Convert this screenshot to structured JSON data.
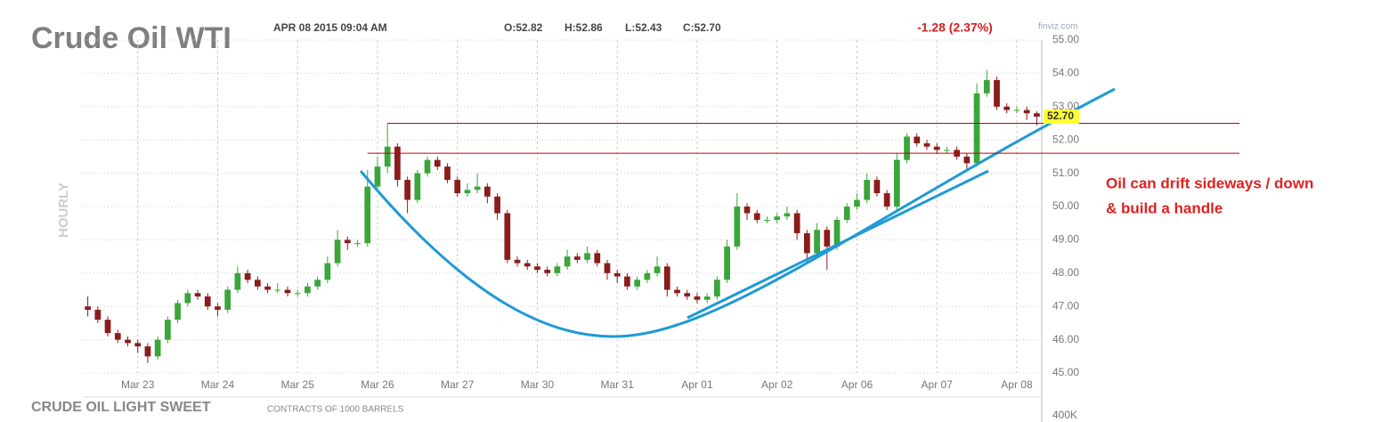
{
  "header": {
    "title": "Crude Oil WTI",
    "timestamp": "APR 08 2015 09:04 AM",
    "open": "O:52.82",
    "high": "H:52.86",
    "low": "L:52.43",
    "close": "C:52.70",
    "change": "-1.28 (2.37%)",
    "source": "finviz.com",
    "period": "HOURLY",
    "instrument": "CRUDE OIL LIGHT SWEET",
    "units": "CONTRACTS OF 1000 BARRELS",
    "volume_tick": "400K"
  },
  "annotation": [
    "Oil can drift sideways / down",
    "& build a handle"
  ],
  "chart_data": {
    "type": "candlestick",
    "categories": [
      null,
      null,
      null,
      null,
      null,
      "Mar 23",
      null,
      null,
      null,
      null,
      null,
      null,
      null,
      "Mar 24",
      null,
      null,
      null,
      null,
      null,
      null,
      null,
      "Mar 25",
      null,
      null,
      null,
      null,
      null,
      null,
      null,
      "Mar 26",
      null,
      null,
      null,
      null,
      null,
      null,
      null,
      "Mar 27",
      null,
      null,
      null,
      null,
      null,
      null,
      null,
      "Mar 30",
      null,
      null,
      null,
      null,
      null,
      null,
      null,
      "Mar 31",
      null,
      null,
      null,
      null,
      null,
      null,
      null,
      "Apr 01",
      null,
      null,
      null,
      null,
      null,
      null,
      null,
      "Apr 02",
      null,
      null,
      null,
      null,
      null,
      null,
      null,
      "Apr 06",
      null,
      null,
      null,
      null,
      null,
      null,
      null,
      "Apr 07",
      null,
      null,
      null,
      null,
      null,
      null,
      null,
      "Apr 08",
      null,
      null
    ],
    "open": [
      47.0,
      46.9,
      46.6,
      46.2,
      46.0,
      45.9,
      45.8,
      45.5,
      46.0,
      46.6,
      47.1,
      47.4,
      47.3,
      47.0,
      46.9,
      47.5,
      48.0,
      47.8,
      47.6,
      47.5,
      47.5,
      47.4,
      47.4,
      47.6,
      47.8,
      48.3,
      49.0,
      48.9,
      48.9,
      50.6,
      51.2,
      51.8,
      50.8,
      50.2,
      51.0,
      51.4,
      51.2,
      50.8,
      50.4,
      50.5,
      50.6,
      50.3,
      49.8,
      48.4,
      48.3,
      48.2,
      48.1,
      48.0,
      48.2,
      48.5,
      48.4,
      48.6,
      48.3,
      48.0,
      47.9,
      47.6,
      47.8,
      48.0,
      48.2,
      47.5,
      47.4,
      47.3,
      47.2,
      47.3,
      47.8,
      48.8,
      50.0,
      49.8,
      49.6,
      49.6,
      49.7,
      49.8,
      49.2,
      48.6,
      49.3,
      48.8,
      49.6,
      50.0,
      50.2,
      50.8,
      50.4,
      50.0,
      51.4,
      52.1,
      51.9,
      51.8,
      51.7,
      51.7,
      51.5,
      51.3,
      53.4,
      53.8,
      53.0,
      52.9,
      52.9,
      52.8
    ],
    "high": [
      47.3,
      47.0,
      46.7,
      46.3,
      46.1,
      46.0,
      45.9,
      46.1,
      46.7,
      47.2,
      47.5,
      47.5,
      47.4,
      47.1,
      47.6,
      48.2,
      48.1,
      47.9,
      47.7,
      47.7,
      47.6,
      47.5,
      47.7,
      47.9,
      48.5,
      49.3,
      49.1,
      49.0,
      51.1,
      51.5,
      52.5,
      51.9,
      50.9,
      51.1,
      51.5,
      51.5,
      51.3,
      50.9,
      50.7,
      51.0,
      50.7,
      50.4,
      49.9,
      48.5,
      48.4,
      48.3,
      48.2,
      48.3,
      48.7,
      48.6,
      48.8,
      48.7,
      48.4,
      48.1,
      48.0,
      47.9,
      48.1,
      48.5,
      48.3,
      47.6,
      47.5,
      47.4,
      47.4,
      47.9,
      49.0,
      50.4,
      50.1,
      49.9,
      49.7,
      49.8,
      50.0,
      49.9,
      49.3,
      49.5,
      49.4,
      49.7,
      50.1,
      50.4,
      51.0,
      50.9,
      50.5,
      51.6,
      52.2,
      52.2,
      52.0,
      51.9,
      51.8,
      51.8,
      51.6,
      53.7,
      54.1,
      53.9,
      53.1,
      53.0,
      53.0,
      52.86
    ],
    "low": [
      46.7,
      46.5,
      46.1,
      45.9,
      45.8,
      45.6,
      45.3,
      45.4,
      45.9,
      46.5,
      47.0,
      47.2,
      46.9,
      46.7,
      46.8,
      47.4,
      47.7,
      47.5,
      47.4,
      47.4,
      47.3,
      47.3,
      47.3,
      47.5,
      47.7,
      48.2,
      48.7,
      48.8,
      48.8,
      50.5,
      51.0,
      50.6,
      49.8,
      50.1,
      50.9,
      51.1,
      50.7,
      50.3,
      50.3,
      50.4,
      50.1,
      49.6,
      48.3,
      48.2,
      48.1,
      48.0,
      47.9,
      47.9,
      48.1,
      48.3,
      48.3,
      48.2,
      47.8,
      47.7,
      47.5,
      47.5,
      47.7,
      47.9,
      47.3,
      47.3,
      47.2,
      47.1,
      47.1,
      47.2,
      47.7,
      48.7,
      49.6,
      49.5,
      49.5,
      49.5,
      49.6,
      49.0,
      48.3,
      48.5,
      48.1,
      48.7,
      49.5,
      49.9,
      50.1,
      50.3,
      49.9,
      49.9,
      51.3,
      51.8,
      51.7,
      51.6,
      51.6,
      51.4,
      51.1,
      51.2,
      53.3,
      52.9,
      52.8,
      52.8,
      52.6,
      52.43
    ],
    "close": [
      46.9,
      46.6,
      46.2,
      46.0,
      45.9,
      45.8,
      45.5,
      46.0,
      46.6,
      47.1,
      47.4,
      47.3,
      47.0,
      46.9,
      47.5,
      48.0,
      47.8,
      47.6,
      47.5,
      47.5,
      47.4,
      47.4,
      47.6,
      47.8,
      48.3,
      49.0,
      48.9,
      48.9,
      50.6,
      51.2,
      51.8,
      50.8,
      50.2,
      51.0,
      51.4,
      51.2,
      50.8,
      50.4,
      50.5,
      50.6,
      50.3,
      49.8,
      48.4,
      48.3,
      48.2,
      48.1,
      48.0,
      48.2,
      48.5,
      48.4,
      48.6,
      48.3,
      48.0,
      47.9,
      47.6,
      47.8,
      48.0,
      48.2,
      47.5,
      47.4,
      47.3,
      47.2,
      47.3,
      47.8,
      48.8,
      50.0,
      49.8,
      49.6,
      49.6,
      49.7,
      49.8,
      49.2,
      48.6,
      49.3,
      48.8,
      49.6,
      50.0,
      50.2,
      50.8,
      50.4,
      50.0,
      51.4,
      52.1,
      51.9,
      51.8,
      51.7,
      51.7,
      51.5,
      51.3,
      53.4,
      53.8,
      53.0,
      52.9,
      52.9,
      52.8,
      52.7
    ],
    "last_price_label": "52.70",
    "up_color": "#3aa63a",
    "down_color": "#8b1c1c",
    "reference_lines": [
      52.5,
      51.6
    ],
    "reference_color": "#c00000",
    "ylim": [
      45,
      55
    ],
    "yticks": [
      {
        "value": 45,
        "label": "45.00"
      },
      {
        "value": 46,
        "label": "46.00"
      },
      {
        "value": 47,
        "label": "47.00"
      },
      {
        "value": 48,
        "label": "48.00"
      },
      {
        "value": 49,
        "label": "49.00"
      },
      {
        "value": 50,
        "label": "50.00"
      },
      {
        "value": 51,
        "label": "51.00"
      },
      {
        "value": 52,
        "label": "52.00"
      },
      {
        "value": 53,
        "label": "53.00"
      },
      {
        "value": 54,
        "label": "54.00"
      },
      {
        "value": 55,
        "label": "55.00"
      }
    ],
    "grid": true
  }
}
